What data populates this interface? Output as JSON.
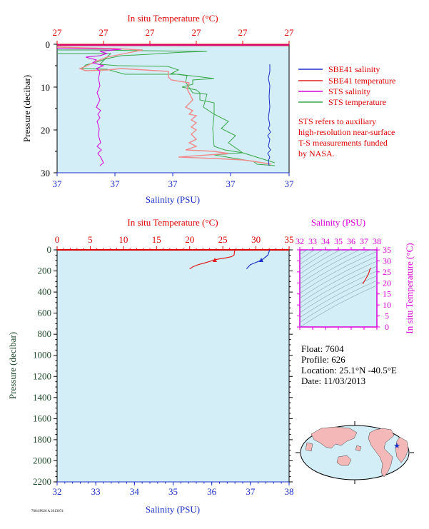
{
  "top_chart": {
    "temp_axis_title": "In situ Temperature (°C)",
    "temp_ticks": [
      "27",
      "27",
      "27",
      "27",
      "27",
      "27"
    ],
    "sal_axis_title": "Salinity (PSU)",
    "sal_ticks": [
      "37",
      "37",
      "37",
      "37",
      "37"
    ],
    "pressure_title": "Pressure (decibar)",
    "pressure_ticks": [
      "0",
      "10",
      "20",
      "30"
    ],
    "legend": [
      {
        "label": "SBE41 salinity",
        "color": "#1a2fc8"
      },
      {
        "label": "SBE41 temperature",
        "color": "#e02020"
      },
      {
        "label": "STS salinity",
        "color": "#d800d8"
      },
      {
        "label": "STS temperature",
        "color": "#3aa84a"
      }
    ],
    "note": [
      "STS refers to auxiliary",
      "high-resolution near-surface",
      "T-S measurements funded",
      "by NASA."
    ]
  },
  "bottom_chart": {
    "temp_axis_title": "In situ Temperature (°C)",
    "temp_ticks": [
      "0",
      "5",
      "10",
      "15",
      "20",
      "25",
      "30",
      "35"
    ],
    "sal_axis_title": "Salinity (PSU)",
    "sal_ticks": [
      "32",
      "33",
      "34",
      "35",
      "36",
      "37",
      "38"
    ],
    "pressure_title": "Pressure (decibar)",
    "pressure_ticks": [
      "0",
      "200",
      "400",
      "600",
      "800",
      "1000",
      "1200",
      "1400",
      "1600",
      "1800",
      "2000",
      "2200"
    ]
  },
  "ts_diagram": {
    "sal_title": "Salinity (PSU)",
    "sal_ticks": [
      "32",
      "33",
      "34",
      "35",
      "36",
      "37",
      "38"
    ],
    "temp_title": "In situ Temperature (°C)",
    "temp_ticks": [
      "0",
      "5",
      "10",
      "15",
      "20",
      "25",
      "30",
      "35"
    ]
  },
  "info": {
    "float": "Float:  7604",
    "profile": "Profile:  626",
    "location": "Location:  25.1°N  -40.5°E",
    "date": "Date:  11/03/2013"
  },
  "footer_code": "7604 P626 A 2013074",
  "colors": {
    "plot_bg": "#d4eef7",
    "temperature": "#e02020",
    "salinity": "#1a2fc8",
    "sts_salinity": "#d800d8",
    "sts_temperature": "#3aa84a",
    "land": "#f4b8b8"
  },
  "chart_data": [
    {
      "type": "line",
      "panel": "top",
      "ylabel": "Pressure (decibar)",
      "ylim": [
        30,
        0
      ],
      "series": [
        {
          "name": "SBE41 salinity",
          "x": [
            37.0,
            37.0,
            37.0,
            37.0,
            37.0,
            37.0,
            37.0
          ],
          "y": [
            4,
            8,
            12,
            16,
            20,
            24,
            28
          ]
        },
        {
          "name": "SBE41 temperature",
          "x": [
            27,
            27,
            27,
            27,
            27,
            27,
            27
          ],
          "y": [
            0.5,
            6,
            10,
            14,
            19,
            24,
            28
          ]
        },
        {
          "name": "STS salinity",
          "x": [
            37,
            37,
            37,
            37,
            37,
            37,
            37
          ],
          "y": [
            1,
            5,
            9,
            13,
            18,
            23,
            28
          ]
        },
        {
          "name": "STS temperature",
          "x": [
            27,
            27,
            27,
            27,
            27,
            27,
            27
          ],
          "y": [
            1,
            5,
            9,
            13,
            18,
            23,
            28
          ]
        }
      ]
    },
    {
      "type": "line",
      "panel": "bottom",
      "ylabel": "Pressure (decibar)",
      "ylim": [
        2200,
        0
      ],
      "series": [
        {
          "name": "SBE41 temperature",
          "x": [
            26.8,
            26.7,
            26.3,
            25.5,
            24.5,
            23.7,
            23.0,
            22.2,
            21.3,
            20.5,
            20.0
          ],
          "y": [
            0,
            50,
            65,
            75,
            85,
            95,
            110,
            125,
            140,
            160,
            180
          ]
        },
        {
          "name": "SBE41 salinity",
          "x": [
            37.5,
            37.45,
            37.4,
            37.35,
            37.3,
            37.2,
            37.1,
            37.0,
            36.95,
            36.9
          ],
          "y": [
            0,
            50,
            65,
            80,
            95,
            110,
            125,
            140,
            160,
            180
          ]
        }
      ]
    },
    {
      "type": "line",
      "panel": "ts",
      "xlabel": "Salinity (PSU)",
      "ylabel": "In situ Temperature (°C)",
      "xlim": [
        32,
        38
      ],
      "ylim": [
        0,
        35
      ],
      "series": [
        {
          "name": "T-S",
          "x": [
            36.9,
            37.0,
            37.1,
            37.25,
            37.4,
            37.5
          ],
          "y": [
            19.5,
            20.5,
            21.5,
            23.0,
            25.0,
            26.8
          ]
        }
      ]
    }
  ]
}
